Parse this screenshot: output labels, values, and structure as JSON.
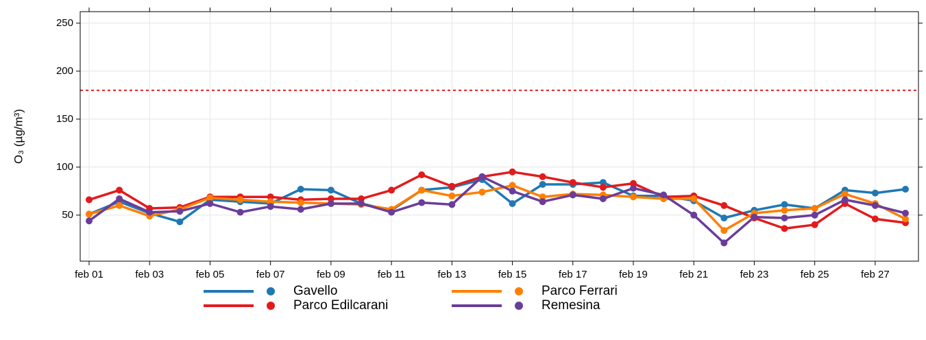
{
  "chart_data": {
    "type": "line",
    "y_label": "O₃ (µg/m³)",
    "categories": [
      "feb 01",
      null,
      "feb 03",
      null,
      "feb 05",
      null,
      "feb 07",
      null,
      "feb 09",
      null,
      "feb 11",
      null,
      "feb 13",
      null,
      "feb 15",
      null,
      "feb 17",
      null,
      "feb 19",
      null,
      "feb 21",
      null,
      "feb 23",
      null,
      "feb 25",
      null,
      "feb 27",
      null
    ],
    "series": [
      {
        "name": "Gavello",
        "color": "#1f78b4",
        "values": [
          51,
          64,
          52,
          43,
          66,
          64,
          62,
          77,
          76,
          62,
          55,
          76,
          79,
          87,
          62,
          82,
          82,
          84,
          70,
          70,
          65,
          47,
          55,
          61,
          57,
          76,
          73,
          77
        ]
      },
      {
        "name": "Parco Edilcarani",
        "color": "#e31a1c",
        "values": [
          66,
          76,
          57,
          58,
          69,
          69,
          69,
          66,
          67,
          67,
          76,
          92,
          80,
          90,
          95,
          90,
          84,
          79,
          83,
          69,
          70,
          60,
          47,
          36,
          40,
          62,
          46,
          42
        ]
      },
      {
        "name": "Parco Ferrari",
        "color": "#ff7f00",
        "values": [
          51,
          60,
          49,
          56,
          68,
          66,
          64,
          63,
          62,
          61,
          56,
          76,
          70,
          74,
          81,
          69,
          72,
          71,
          69,
          67,
          67,
          34,
          52,
          55,
          57,
          72,
          62,
          46
        ]
      },
      {
        "name": "Remesina",
        "color": "#6a3d9a",
        "values": [
          44,
          67,
          53,
          54,
          62,
          53,
          59,
          56,
          62,
          62,
          53,
          63,
          61,
          90,
          75,
          64,
          71,
          67,
          78,
          71,
          50,
          21,
          48,
          47,
          50,
          66,
          60,
          52
        ]
      }
    ],
    "ylim": [
      2,
      262
    ],
    "yticks": [
      50,
      100,
      150,
      200,
      250
    ],
    "threshold": 180,
    "threshold_color": "#e31a1c",
    "grid": true,
    "legend": "bottom"
  }
}
